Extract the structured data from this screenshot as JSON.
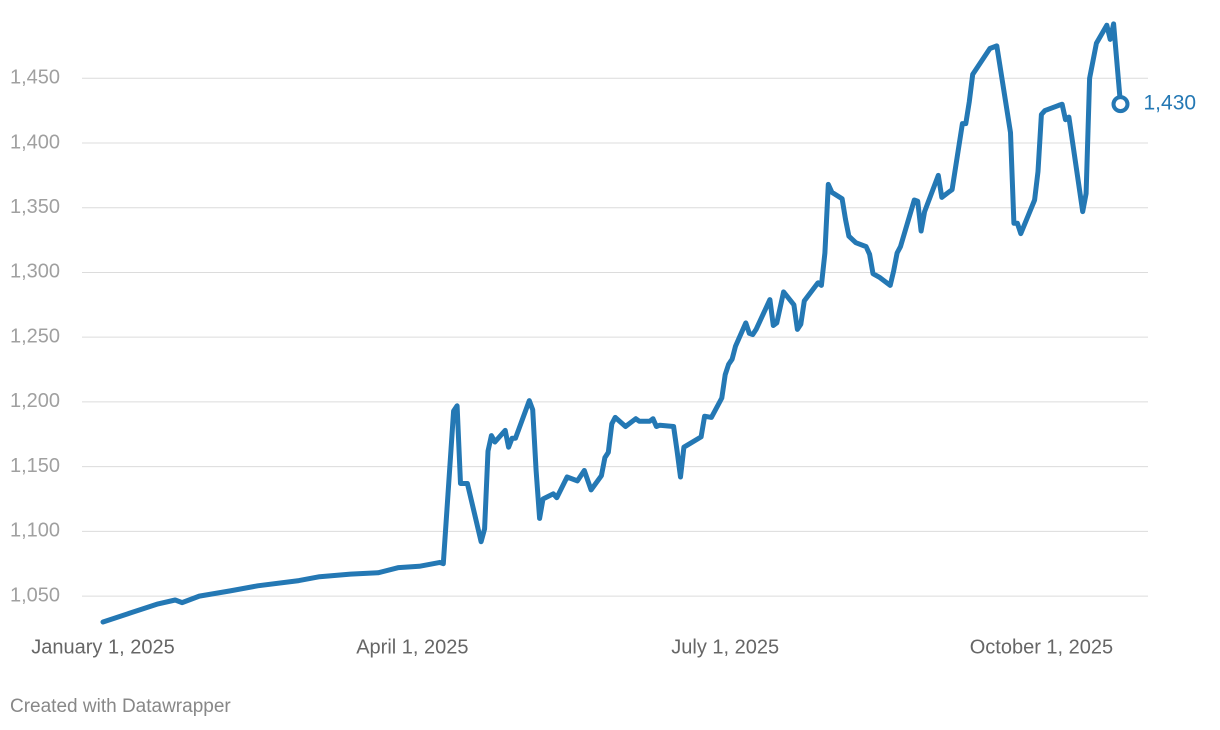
{
  "chart_data": {
    "type": "line",
    "credit": "Created with Datawrapper",
    "x": [
      "2025-01-01",
      "2025-01-09",
      "2025-01-17",
      "2025-01-22",
      "2025-01-24",
      "2025-01-29",
      "2025-02-07",
      "2025-02-15",
      "2025-02-27",
      "2025-03-05",
      "2025-03-14",
      "2025-03-22",
      "2025-03-28",
      "2025-04-03",
      "2025-04-09",
      "2025-04-10",
      "2025-04-13",
      "2025-04-14",
      "2025-04-15",
      "2025-04-17",
      "2025-04-21",
      "2025-04-22",
      "2025-04-23",
      "2025-04-24",
      "2025-04-25",
      "2025-04-28",
      "2025-04-29",
      "2025-04-30",
      "2025-05-01",
      "2025-05-05",
      "2025-05-06",
      "2025-05-07",
      "2025-05-08",
      "2025-05-09",
      "2025-05-12",
      "2025-05-13",
      "2025-05-16",
      "2025-05-19",
      "2025-05-21",
      "2025-05-23",
      "2025-05-26",
      "2025-05-27",
      "2025-05-28",
      "2025-05-29",
      "2025-05-30",
      "2025-06-02",
      "2025-06-05",
      "2025-06-06",
      "2025-06-09",
      "2025-06-10",
      "2025-06-11",
      "2025-06-12",
      "2025-06-16",
      "2025-06-17",
      "2025-06-18",
      "2025-06-19",
      "2025-06-24",
      "2025-06-25",
      "2025-06-27",
      "2025-06-30",
      "2025-07-01",
      "2025-07-02",
      "2025-07-03",
      "2025-07-04",
      "2025-07-07",
      "2025-07-08",
      "2025-07-09",
      "2025-07-10",
      "2025-07-14",
      "2025-07-15",
      "2025-07-16",
      "2025-07-18",
      "2025-07-21",
      "2025-07-22",
      "2025-07-23",
      "2025-07-24",
      "2025-07-28",
      "2025-07-29",
      "2025-07-30",
      "2025-07-31",
      "2025-08-01",
      "2025-08-04",
      "2025-08-05",
      "2025-08-06",
      "2025-08-08",
      "2025-08-11",
      "2025-08-12",
      "2025-08-13",
      "2025-08-15",
      "2025-08-18",
      "2025-08-19",
      "2025-08-20",
      "2025-08-21",
      "2025-08-25",
      "2025-08-26",
      "2025-08-27",
      "2025-08-28",
      "2025-09-01",
      "2025-09-02",
      "2025-09-04",
      "2025-09-05",
      "2025-09-08",
      "2025-09-09",
      "2025-09-10",
      "2025-09-11",
      "2025-09-16",
      "2025-09-18",
      "2025-09-22",
      "2025-09-23",
      "2025-09-24",
      "2025-09-25",
      "2025-09-29",
      "2025-09-30",
      "2025-10-01",
      "2025-10-02",
      "2025-10-06",
      "2025-10-07",
      "2025-10-08",
      "2025-10-09",
      "2025-10-13",
      "2025-10-14",
      "2025-10-15",
      "2025-10-17",
      "2025-10-20",
      "2025-10-21",
      "2025-10-22",
      "2025-10-24"
    ],
    "series": [
      {
        "color": "#2478b4",
        "end_label": "1,430",
        "values": [
          1030,
          1037,
          1044,
          1047,
          1045,
          1050,
          1054,
          1058,
          1062,
          1065,
          1067,
          1068,
          1072,
          1073,
          1076,
          1075,
          1193,
          1197,
          1137,
          1137,
          1092,
          1102,
          1162,
          1174,
          1169,
          1178,
          1165,
          1172,
          1172,
          1201,
          1194,
          1147,
          1110,
          1125,
          1129,
          1126,
          1142,
          1139,
          1147,
          1132,
          1143,
          1157,
          1161,
          1183,
          1188,
          1181,
          1187,
          1185,
          1185,
          1187,
          1181,
          1182,
          1181,
          1162,
          1142,
          1165,
          1173,
          1189,
          1188,
          1203,
          1221,
          1229,
          1233,
          1243,
          1261,
          1253,
          1252,
          1256,
          1279,
          1259,
          1261,
          1285,
          1275,
          1256,
          1260,
          1278,
          1292,
          1290,
          1315,
          1368,
          1362,
          1357,
          1341,
          1328,
          1323,
          1320,
          1314,
          1299,
          1296,
          1290,
          1301,
          1315,
          1320,
          1356,
          1355,
          1332,
          1347,
          1375,
          1358,
          1362,
          1364,
          1415,
          1415,
          1432,
          1453,
          1473,
          1475,
          1408,
          1338,
          1338,
          1330,
          1356,
          1378,
          1422,
          1425,
          1429,
          1430,
          1418,
          1420,
          1347,
          1361,
          1450,
          1477,
          1491,
          1480,
          1492,
          1430
        ]
      }
    ],
    "xlim": [
      "2025-01-01",
      "2025-11-01"
    ],
    "xticks": [
      {
        "value": "2025-01-01",
        "label": "January 1, 2025"
      },
      {
        "value": "2025-04-01",
        "label": "April 1, 2025"
      },
      {
        "value": "2025-07-01",
        "label": "July 1, 2025"
      },
      {
        "value": "2025-10-01",
        "label": "October 1, 2025"
      }
    ],
    "ylim": [
      1030,
      1495
    ],
    "yticks": [
      {
        "value": 1050,
        "label": "1,050"
      },
      {
        "value": 1100,
        "label": "1,100"
      },
      {
        "value": 1150,
        "label": "1,150"
      },
      {
        "value": 1200,
        "label": "1,200"
      },
      {
        "value": 1250,
        "label": "1,250"
      },
      {
        "value": 1300,
        "label": "1,300"
      },
      {
        "value": 1350,
        "label": "1,350"
      },
      {
        "value": 1400,
        "label": "1,400"
      },
      {
        "value": 1450,
        "label": "1,450"
      }
    ],
    "grid": true
  }
}
